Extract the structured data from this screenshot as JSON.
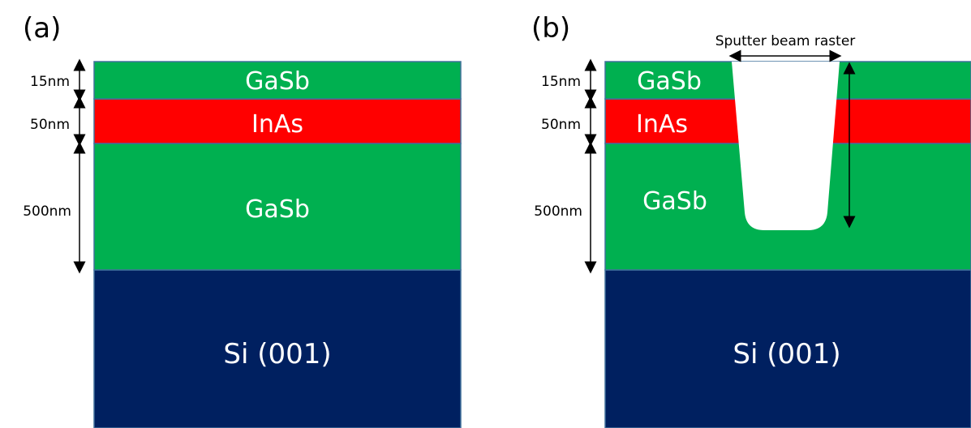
{
  "panels": [
    {
      "label": "(a)",
      "layers": {
        "top_gasb": "GaSb",
        "inas": "InAs",
        "buffer_gasb": "GaSb",
        "substrate": "Si (001)"
      },
      "thicknesses": {
        "top_gasb": "15nm",
        "inas": "50nm",
        "buffer_gasb": "500nm"
      }
    },
    {
      "label": "(b)",
      "layers": {
        "top_gasb": "GaSb",
        "inas": "InAs",
        "buffer_gasb": "GaSb",
        "substrate": "Si (001)"
      },
      "thicknesses": {
        "top_gasb": "15nm",
        "inas": "50nm",
        "buffer_gasb": "500nm"
      },
      "annotation": "Sputter beam raster"
    }
  ],
  "colors": {
    "gasb": "#00b050",
    "inas": "#ff0000",
    "substrate": "#002060",
    "crater": "#ffffff",
    "text_on_layer": "#ffffff"
  }
}
